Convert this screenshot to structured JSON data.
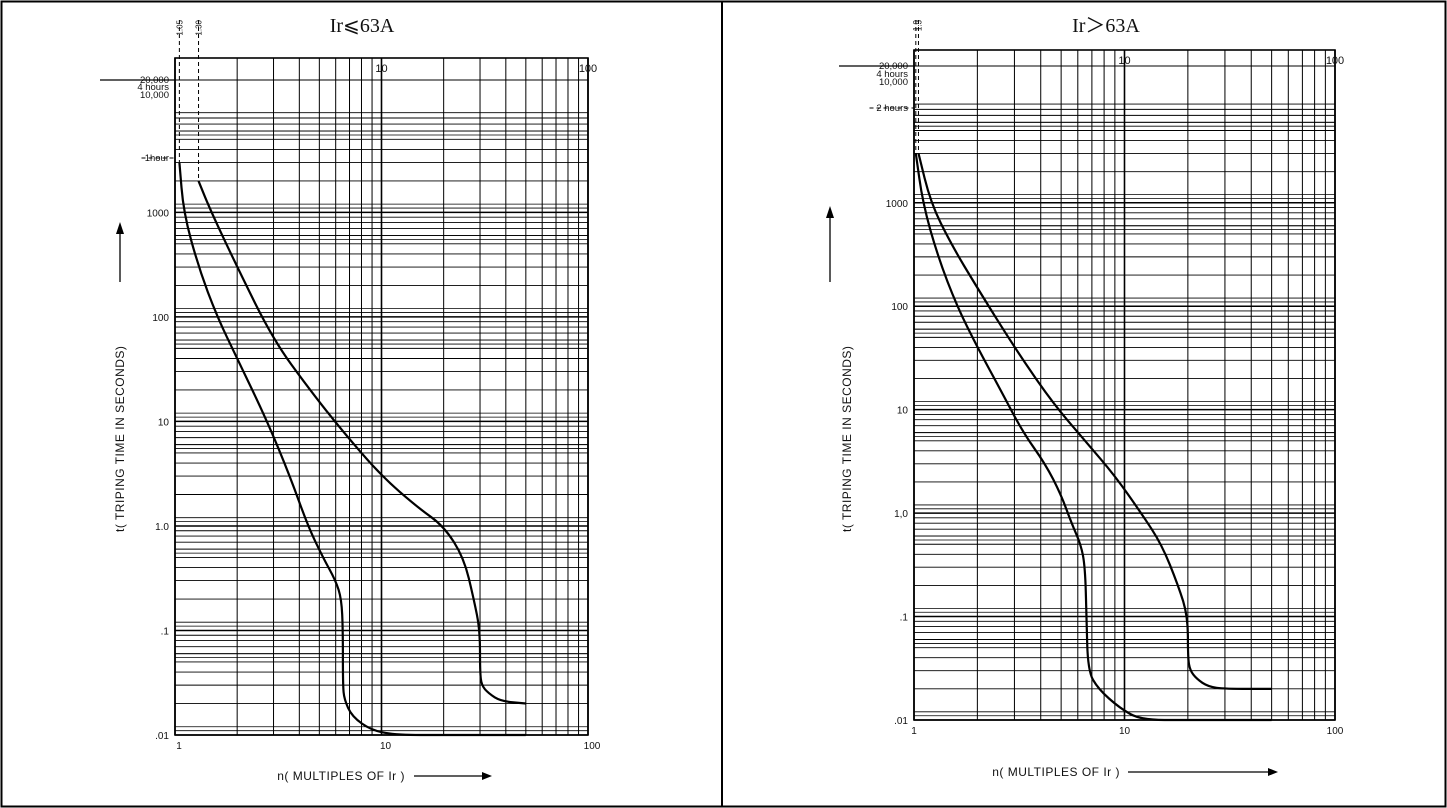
{
  "chart_data": [
    {
      "type": "line",
      "title": "Ir⩽63A",
      "xlabel": "n( MULTIPLES OF Ir )",
      "ylabel": "t( TRIPING TIME IN SECONDS)",
      "x_scale": "log",
      "y_scale": "log",
      "xlim": [
        1,
        100
      ],
      "ylim": [
        0.01,
        30000
      ],
      "x_ticks_bottom": [
        "1",
        "10",
        "100"
      ],
      "x_ticks_top": [
        "10",
        "100"
      ],
      "y_ticks": [
        "1000",
        "100",
        "10",
        "1.0",
        ".1",
        ".01"
      ],
      "y_annotations": [
        "20,000",
        "4 hours",
        "10,000",
        "1hour"
      ],
      "vertical_marker_labels": [
        "1.05",
        "1.30"
      ],
      "grid": true,
      "series": [
        {
          "x": [
            1.05,
            1.1,
            1.3,
            1.6,
            2.0,
            2.8,
            3.6,
            4.4,
            5.2,
            6.0,
            6.4,
            6.5,
            6.5,
            6.6,
            7.2,
            9.0,
            12,
            20,
            50
          ],
          "y": [
            3000,
            1000,
            300,
            100,
            40,
            10,
            3,
            1.0,
            0.5,
            0.3,
            0.2,
            0.1,
            0.03,
            0.022,
            0.015,
            0.011,
            0.01,
            0.01,
            0.01
          ]
        },
        {
          "x": [
            1.3,
            1.5,
            2.0,
            3.0,
            4.5,
            6.5,
            10,
            15,
            20,
            25,
            28,
            30,
            30,
            30.5,
            33,
            38,
            50
          ],
          "y": [
            2000,
            1000,
            300,
            60,
            20,
            8,
            3,
            1.5,
            1.0,
            0.5,
            0.2,
            0.1,
            0.04,
            0.03,
            0.025,
            0.021,
            0.02
          ]
        }
      ]
    },
    {
      "type": "line",
      "title": "Ir＞63A",
      "xlabel": "n( MULTIPLES OF Ir )",
      "ylabel": "t( TRIPING TIME IN SECONDS)",
      "x_scale": "log",
      "y_scale": "log",
      "xlim": [
        1,
        100
      ],
      "ylim": [
        0.01,
        30000
      ],
      "x_ticks_bottom": [
        "1",
        "10",
        "100"
      ],
      "x_ticks_top": [
        "10",
        "100"
      ],
      "y_ticks": [
        "1000",
        "100",
        "10",
        "1,0",
        ".1",
        ".01"
      ],
      "y_annotations": [
        "20,000",
        "4 hours",
        "10,000",
        "2 hours"
      ],
      "vertical_marker_labels": [
        "1.0",
        "1.3"
      ],
      "grid": true,
      "series": [
        {
          "x": [
            1.02,
            1.1,
            1.3,
            1.6,
            2.0,
            2.6,
            3.3,
            4.2,
            5.0,
            5.6,
            6.2,
            6.5,
            6.6,
            6.7,
            7.5,
            9.5,
            12,
            20,
            50
          ],
          "y": [
            3000,
            1000,
            300,
            100,
            40,
            15,
            6,
            3,
            1.5,
            0.8,
            0.5,
            0.3,
            0.1,
            0.03,
            0.02,
            0.013,
            0.01,
            0.01,
            0.01
          ]
        },
        {
          "x": [
            1.05,
            1.2,
            1.5,
            2.0,
            3.0,
            4.5,
            6.5,
            9.0,
            12,
            15,
            18,
            20,
            20,
            20.5,
            22,
            25,
            30,
            50
          ],
          "y": [
            3000,
            1000,
            400,
            150,
            40,
            12,
            5,
            2.3,
            1.0,
            0.5,
            0.2,
            0.1,
            0.04,
            0.03,
            0.025,
            0.021,
            0.02,
            0.02
          ]
        }
      ]
    }
  ]
}
